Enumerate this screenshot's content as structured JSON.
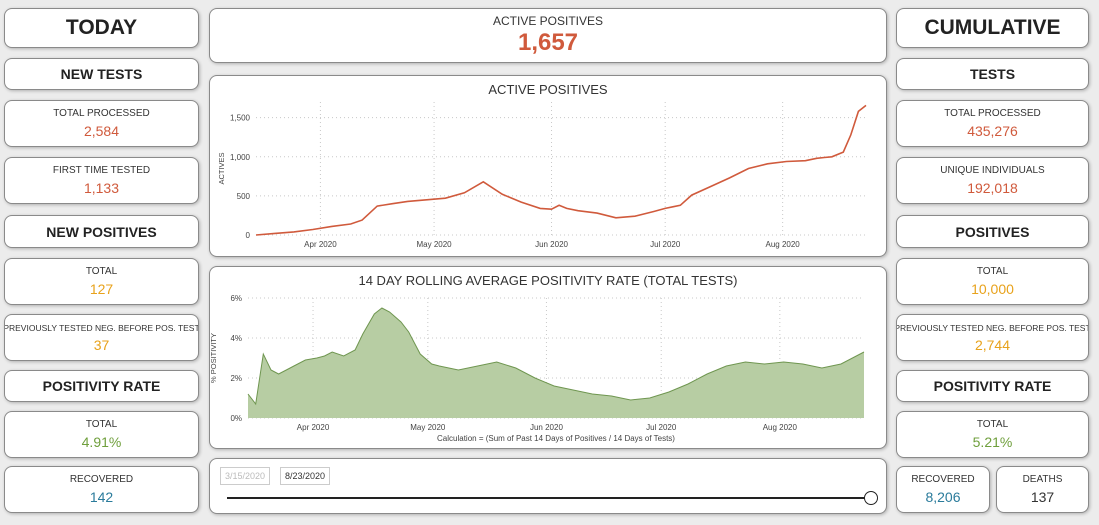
{
  "today": {
    "title": "TODAY",
    "new_tests": {
      "heading": "NEW TESTS",
      "total_processed_label": "TOTAL PROCESSED",
      "total_processed": "2,584",
      "first_time_label": "FIRST TIME TESTED",
      "first_time": "1,133"
    },
    "new_positives": {
      "heading": "NEW POSITIVES",
      "total_label": "TOTAL",
      "total": "127",
      "prev_label": "PREVIOUSLY TESTED NEG. BEFORE POS. TEST",
      "prev": "37"
    },
    "positivity": {
      "heading": "POSITIVITY RATE",
      "total_label": "TOTAL",
      "total": "4.91%"
    },
    "recovered_label": "RECOVERED",
    "recovered": "142"
  },
  "active": {
    "title": "ACTIVE POSITIVES",
    "value": "1,657"
  },
  "cumulative": {
    "title": "CUMULATIVE",
    "tests": {
      "heading": "TESTS",
      "total_processed_label": "TOTAL PROCESSED",
      "total_processed": "435,276",
      "unique_label": "UNIQUE INDIVIDUALS",
      "unique": "192,018"
    },
    "positives": {
      "heading": "POSITIVES",
      "total_label": "TOTAL",
      "total": "10,000",
      "prev_label": "PREVIOUSLY TESTED NEG. BEFORE POS. TEST",
      "prev": "2,744"
    },
    "positivity": {
      "heading": "POSITIVITY RATE",
      "total_label": "TOTAL",
      "total": "5.21%"
    },
    "recovered_label": "RECOVERED",
    "recovered": "8,206",
    "deaths_label": "DEATHS",
    "deaths": "137"
  },
  "slider": {
    "start": "3/15/2020",
    "end": "8/23/2020"
  },
  "colors": {
    "active_line": "#d05a3c",
    "positivity_fill": "#b7cda3",
    "positivity_line": "#6f9650"
  },
  "chart_data": [
    {
      "type": "line",
      "title": "ACTIVE POSITIVES",
      "ylabel": "ACTIVES",
      "xlabel": "",
      "ylim": [
        0,
        1700
      ],
      "yticks": [
        0,
        500,
        1000,
        1500
      ],
      "ytick_labels": [
        "0",
        "500",
        "1,000",
        "1,500"
      ],
      "xticks": [
        {
          "day": 17,
          "label": "Apr 2020"
        },
        {
          "day": 47,
          "label": "May 2020"
        },
        {
          "day": 78,
          "label": "Jun 2020"
        },
        {
          "day": 108,
          "label": "Jul 2020"
        },
        {
          "day": 139,
          "label": "Aug 2020"
        }
      ],
      "xlim": [
        0,
        161
      ],
      "grid": true,
      "series": [
        {
          "x": [
            0,
            5,
            10,
            15,
            20,
            25,
            28,
            32,
            36,
            40,
            45,
            50,
            55,
            60,
            65,
            70,
            75,
            78,
            80,
            82,
            85,
            90,
            95,
            100,
            105,
            108,
            110,
            112,
            115,
            120,
            125,
            130,
            135,
            140,
            145,
            148,
            150,
            152,
            155,
            157,
            159,
            161
          ],
          "y": [
            0,
            20,
            40,
            70,
            110,
            140,
            190,
            370,
            400,
            430,
            450,
            470,
            540,
            680,
            520,
            420,
            340,
            330,
            380,
            340,
            310,
            280,
            220,
            240,
            300,
            340,
            360,
            380,
            510,
            620,
            730,
            850,
            910,
            940,
            950,
            980,
            990,
            1000,
            1060,
            1280,
            1580,
            1657
          ]
        }
      ]
    },
    {
      "type": "area",
      "title": "14 DAY ROLLING AVERAGE POSITIVITY RATE (TOTAL TESTS)",
      "ylabel": "% POSITIVITY",
      "xlabel": "Calculation = (Sum of Past 14 Days of Positives / 14 Days of Tests)",
      "ylim": [
        0,
        6
      ],
      "yticks": [
        0,
        2,
        4,
        6
      ],
      "ytick_labels": [
        "0%",
        "2%",
        "4%",
        "6%"
      ],
      "xticks": [
        {
          "day": 17,
          "label": "Apr 2020"
        },
        {
          "day": 47,
          "label": "May 2020"
        },
        {
          "day": 78,
          "label": "Jun 2020"
        },
        {
          "day": 108,
          "label": "Jul 2020"
        },
        {
          "day": 139,
          "label": "Aug 2020"
        }
      ],
      "xlim": [
        0,
        161
      ],
      "grid": true,
      "series": [
        {
          "x": [
            0,
            2,
            4,
            6,
            8,
            10,
            12,
            15,
            18,
            20,
            22,
            25,
            28,
            30,
            33,
            35,
            37,
            40,
            42,
            45,
            48,
            50,
            55,
            60,
            65,
            70,
            75,
            80,
            85,
            90,
            95,
            100,
            105,
            110,
            115,
            120,
            125,
            130,
            135,
            140,
            145,
            150,
            155,
            161
          ],
          "y": [
            1.2,
            0.7,
            3.2,
            2.4,
            2.2,
            2.4,
            2.6,
            2.9,
            3.0,
            3.1,
            3.3,
            3.1,
            3.4,
            4.2,
            5.2,
            5.5,
            5.3,
            4.8,
            4.3,
            3.2,
            2.7,
            2.6,
            2.4,
            2.6,
            2.8,
            2.5,
            2.0,
            1.6,
            1.4,
            1.2,
            1.1,
            0.9,
            1.0,
            1.3,
            1.7,
            2.2,
            2.6,
            2.8,
            2.7,
            2.8,
            2.7,
            2.5,
            2.7,
            3.3
          ]
        }
      ]
    }
  ]
}
